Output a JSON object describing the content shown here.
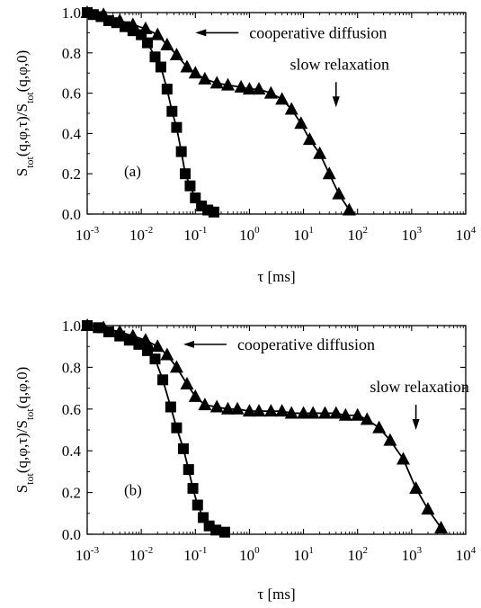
{
  "chart_data": [
    {
      "type": "scatter",
      "panel_label": "(a)",
      "xlabel": "τ [ms]",
      "ylabel": "S_tot(q,φ,τ)/S_tot(q,φ,0)",
      "x_scale": "log",
      "xlim": [
        0.001,
        10000
      ],
      "ylim": [
        0.0,
        1.0
      ],
      "x_ticks": [
        "10^-3",
        "10^-2",
        "10^-1",
        "10^0",
        "10^1",
        "10^2",
        "10^3",
        "10^4"
      ],
      "y_ticks": [
        "0.0",
        "0.2",
        "0.4",
        "0.6",
        "0.8",
        "1.0"
      ],
      "grid": false,
      "annotations": [
        {
          "text": "cooperative diffusion",
          "arrow": "left",
          "x": 0.1,
          "y": 0.9
        },
        {
          "text": "slow relaxation",
          "arrow": "down",
          "x": 40,
          "y": 0.53
        }
      ],
      "series": [
        {
          "marker": "square",
          "x": [
            0.001,
            0.0013,
            0.0018,
            0.0025,
            0.0035,
            0.005,
            0.007,
            0.01,
            0.013,
            0.018,
            0.023,
            0.03,
            0.037,
            0.045,
            0.055,
            0.065,
            0.08,
            0.1,
            0.13,
            0.17,
            0.22
          ],
          "y": [
            1.0,
            0.99,
            0.98,
            0.96,
            0.95,
            0.93,
            0.91,
            0.89,
            0.85,
            0.78,
            0.73,
            0.62,
            0.51,
            0.43,
            0.31,
            0.2,
            0.14,
            0.08,
            0.04,
            0.02,
            0.01
          ]
        },
        {
          "marker": "triangle",
          "x": [
            0.001,
            0.002,
            0.004,
            0.007,
            0.012,
            0.02,
            0.03,
            0.045,
            0.07,
            0.1,
            0.15,
            0.25,
            0.4,
            0.7,
            1.0,
            1.5,
            2.5,
            4,
            6,
            9,
            13,
            20,
            30,
            45,
            70
          ],
          "y": [
            1.0,
            0.99,
            0.96,
            0.94,
            0.92,
            0.89,
            0.84,
            0.79,
            0.73,
            0.7,
            0.67,
            0.65,
            0.64,
            0.63,
            0.62,
            0.62,
            0.6,
            0.57,
            0.52,
            0.45,
            0.37,
            0.3,
            0.2,
            0.1,
            0.02
          ]
        }
      ]
    },
    {
      "type": "scatter",
      "panel_label": "(b)",
      "xlabel": "τ [ms]",
      "ylabel": "S_tot(q,φ,τ)/S_tot(q,φ,0)",
      "x_scale": "log",
      "xlim": [
        0.001,
        10000
      ],
      "ylim": [
        0.0,
        1.0
      ],
      "x_ticks": [
        "10^-3",
        "10^-2",
        "10^-1",
        "10^0",
        "10^1",
        "10^2",
        "10^3",
        "10^4"
      ],
      "y_ticks": [
        "0.0",
        "0.2",
        "0.4",
        "0.6",
        "0.8",
        "1.0"
      ],
      "grid": false,
      "annotations": [
        {
          "text": "cooperative diffusion",
          "arrow": "left",
          "x": 0.06,
          "y": 0.91
        },
        {
          "text": "slow relaxation",
          "arrow": "down",
          "x": 1200,
          "y": 0.5
        }
      ],
      "series": [
        {
          "marker": "square",
          "x": [
            0.001,
            0.0016,
            0.0025,
            0.004,
            0.006,
            0.009,
            0.013,
            0.018,
            0.025,
            0.035,
            0.045,
            0.06,
            0.075,
            0.09,
            0.11,
            0.14,
            0.18,
            0.24,
            0.35
          ],
          "y": [
            1.0,
            0.99,
            0.97,
            0.95,
            0.93,
            0.91,
            0.88,
            0.84,
            0.74,
            0.61,
            0.51,
            0.41,
            0.31,
            0.22,
            0.14,
            0.08,
            0.04,
            0.02,
            0.01
          ]
        },
        {
          "marker": "triangle",
          "x": [
            0.001,
            0.002,
            0.004,
            0.007,
            0.012,
            0.02,
            0.03,
            0.045,
            0.07,
            0.1,
            0.15,
            0.25,
            0.4,
            0.6,
            1,
            1.5,
            2.5,
            4,
            6,
            10,
            15,
            25,
            40,
            60,
            100,
            150,
            250,
            400,
            700,
            1200,
            2000,
            3500
          ],
          "y": [
            1.0,
            0.99,
            0.97,
            0.95,
            0.93,
            0.9,
            0.86,
            0.8,
            0.72,
            0.66,
            0.62,
            0.61,
            0.6,
            0.6,
            0.59,
            0.59,
            0.59,
            0.59,
            0.58,
            0.58,
            0.58,
            0.58,
            0.58,
            0.57,
            0.57,
            0.55,
            0.51,
            0.45,
            0.36,
            0.22,
            0.12,
            0.03
          ]
        }
      ]
    }
  ]
}
